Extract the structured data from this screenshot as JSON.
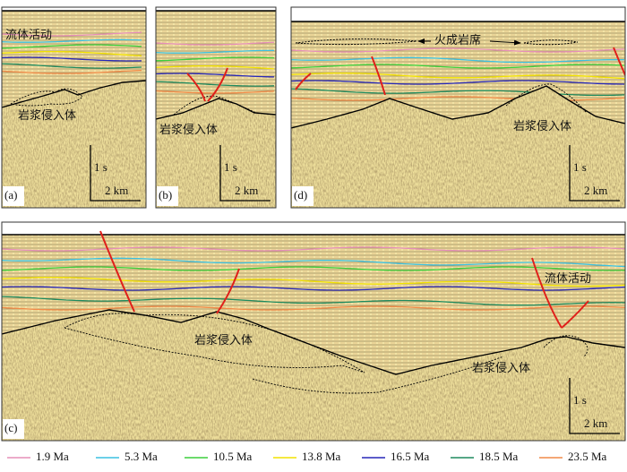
{
  "panels": [
    {
      "label": "(a)",
      "notes": [
        "流体活动",
        "岩浆侵入体"
      ],
      "time_scale": "1 s",
      "distance_scale": "2 km"
    },
    {
      "label": "(b)",
      "notes": [
        "岩浆侵入体"
      ],
      "time_scale": "1 s",
      "distance_scale": "2 km"
    },
    {
      "label": "(d)",
      "notes": [
        "火成岩席",
        "岩浆侵入体"
      ],
      "time_scale": "1 s",
      "distance_scale": "2 km"
    },
    {
      "label": "(c)",
      "notes": [
        "流体活动",
        "岩浆侵入体",
        "岩浆侵入体"
      ],
      "time_scale": "1 s",
      "distance_scale": "2 km"
    }
  ],
  "legend": [
    {
      "label": "1.9 Ma",
      "color": "#e58fb8"
    },
    {
      "label": "5.3 Ma",
      "color": "#3cc0e0"
    },
    {
      "label": "10.5 Ma",
      "color": "#3ccf3c"
    },
    {
      "label": "13.8 Ma",
      "color": "#f2e200"
    },
    {
      "label": "16.5 Ma",
      "color": "#2626b8"
    },
    {
      "label": "18.5 Ma",
      "color": "#1f8a5e"
    },
    {
      "label": "23.5 Ma",
      "color": "#f08a48"
    }
  ]
}
